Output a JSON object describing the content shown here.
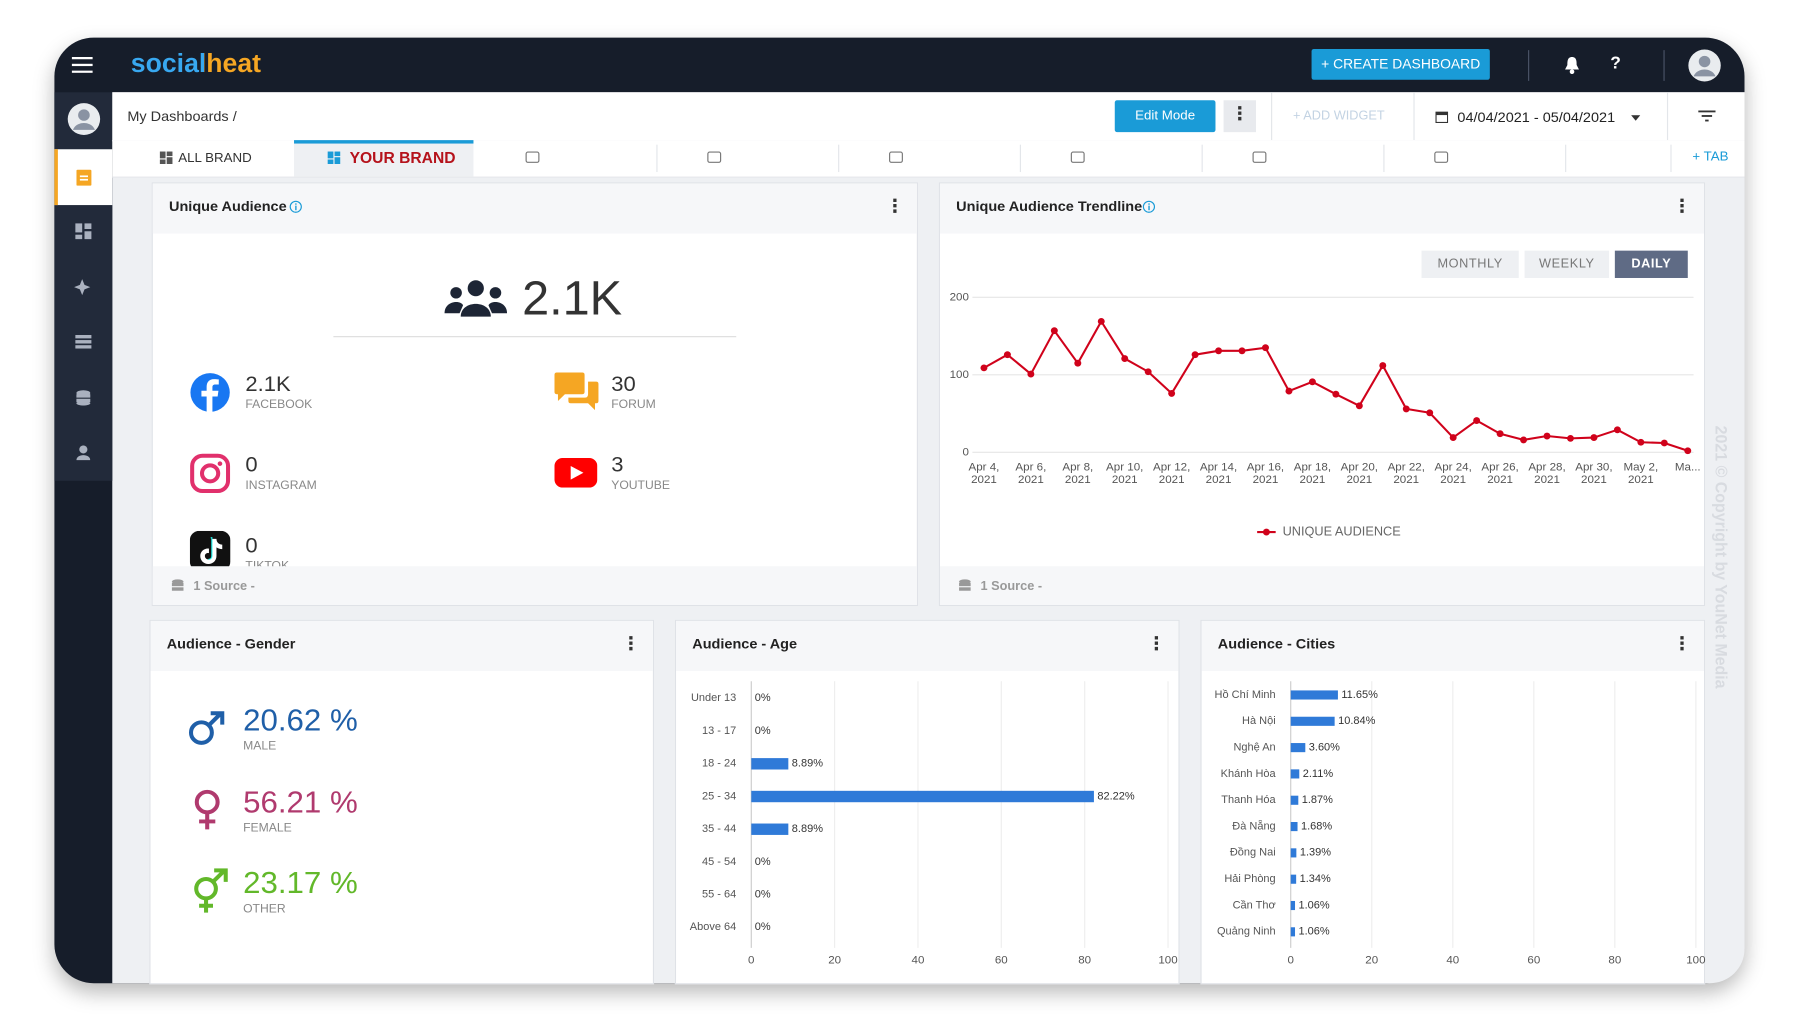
{
  "header": {
    "logo": "socialheat",
    "create_button": "+ CREATE DASHBOARD"
  },
  "toolbar": {
    "breadcrumb": "My Dashboards /",
    "edit_mode": "Edit Mode",
    "add_widget": "+ ADD WIDGET",
    "date_range": "04/04/2021 - 05/04/2021"
  },
  "tabs": {
    "items": [
      "ALL BRAND",
      "YOUR BRAND"
    ],
    "add": "+ TAB"
  },
  "unique_audience": {
    "title": "Unique Audience",
    "total": "2.1K",
    "platforms": [
      {
        "value": "2.1K",
        "label": "FACEBOOK"
      },
      {
        "value": "30",
        "label": "FORUM"
      },
      {
        "value": "0",
        "label": "INSTAGRAM"
      },
      {
        "value": "3",
        "label": "YOUTUBE"
      },
      {
        "value": "0",
        "label": "TIKTOK"
      }
    ],
    "footer": "1 Source -"
  },
  "trendline": {
    "title": "Unique Audience Trendline",
    "periods": [
      "MONTHLY",
      "WEEKLY",
      "DAILY"
    ],
    "footer": "1 Source -"
  },
  "gender": {
    "title": "Audience - Gender",
    "items": [
      {
        "value": "20.62 %",
        "label": "MALE"
      },
      {
        "value": "56.21 %",
        "label": "FEMALE"
      },
      {
        "value": "23.17 %",
        "label": "OTHER"
      }
    ]
  },
  "age": {
    "title": "Audience - Age"
  },
  "cities": {
    "title": "Audience - Cities"
  },
  "watermark": "2021 © Copyright by YouNet Media",
  "chart_data": [
    {
      "type": "line",
      "categories": [
        "Apr 4, 2021",
        null,
        "Apr 6, 2021",
        null,
        "Apr 8, 2021",
        null,
        "Apr 10, 2021",
        null,
        "Apr 12, 2021",
        null,
        "Apr 14, 2021",
        null,
        "Apr 16, 2021",
        null,
        "Apr 18, 2021",
        null,
        "Apr 20, 2021",
        null,
        "Apr 22, 2021",
        null,
        "Apr 24, 2021",
        null,
        "Apr 26, 2021",
        null,
        "Apr 28, 2021",
        null,
        "Apr 30, 2021",
        null,
        "May 2, 2021",
        null,
        "Ma..."
      ],
      "series": [
        {
          "name": "UNIQUE AUDIENCE",
          "color": "#d0021b",
          "values": [
            109,
            126,
            101,
            157,
            115,
            169,
            121,
            104,
            76,
            126,
            131,
            131,
            135,
            79,
            91,
            75,
            60,
            112,
            56,
            51,
            19,
            41,
            24,
            16,
            21,
            18,
            19,
            29,
            13,
            12,
            2
          ]
        }
      ],
      "ylim": [
        0,
        200
      ],
      "yticks": [
        0,
        100,
        200
      ],
      "grid": true,
      "legend": "bottom"
    },
    {
      "type": "bar",
      "orientation": "horizontal",
      "categories": [
        "Under 13",
        "13 - 17",
        "18 - 24",
        "25 - 34",
        "35 - 44",
        "45 - 54",
        "55 - 64",
        "Above 64"
      ],
      "values": [
        0,
        0,
        8.89,
        82.22,
        8.89,
        0,
        0,
        0
      ],
      "value_labels": [
        "0%",
        "0%",
        "8.89%",
        "82.22%",
        "8.89%",
        "0%",
        "0%",
        "0%"
      ],
      "color": "#2f7ad8",
      "xlim": [
        0,
        100
      ],
      "xticks": [
        0,
        20,
        40,
        60,
        80,
        100
      ],
      "grid": true
    },
    {
      "type": "bar",
      "orientation": "horizontal",
      "categories": [
        "Hồ Chí Minh",
        "Hà Nội",
        "Nghệ An",
        "Khánh Hòa",
        "Thanh Hóa",
        "Đà Nẵng",
        "Đồng Nai",
        "Hải Phòng",
        "Cần Thơ",
        "Quảng Ninh"
      ],
      "values": [
        11.65,
        10.84,
        3.6,
        2.11,
        1.87,
        1.68,
        1.39,
        1.34,
        1.06,
        1.06
      ],
      "value_labels": [
        "11.65%",
        "10.84%",
        "3.60%",
        "2.11%",
        "1.87%",
        "1.68%",
        "1.39%",
        "1.34%",
        "1.06%",
        "1.06%"
      ],
      "color": "#2f7ad8",
      "xlim": [
        0,
        100
      ],
      "xticks": [
        0,
        20,
        40,
        60,
        80,
        100
      ],
      "grid": true
    }
  ]
}
